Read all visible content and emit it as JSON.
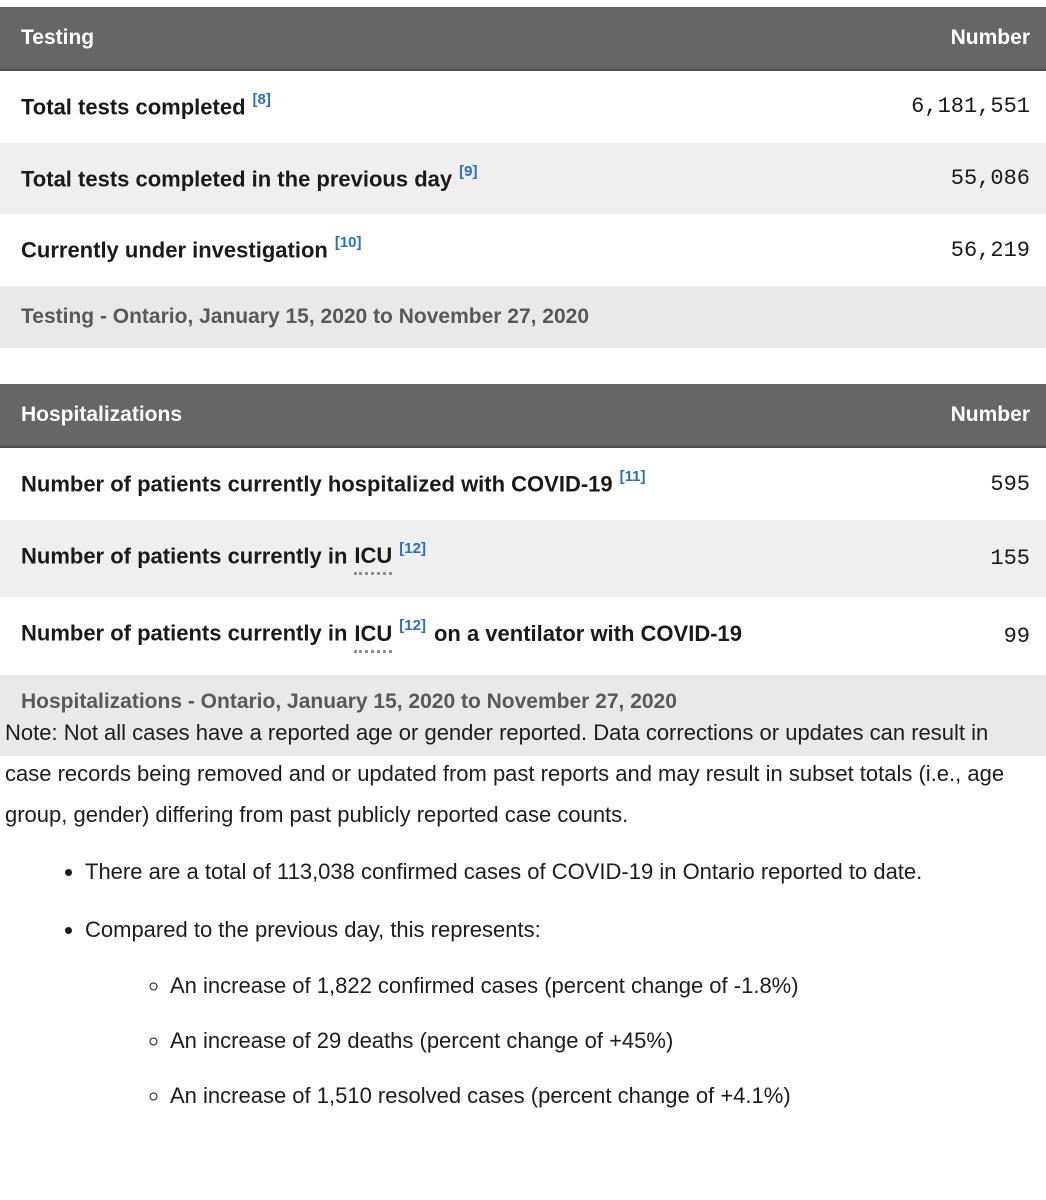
{
  "colors": {
    "table_header_bg": "#666667",
    "table_header_text": "#ffffff",
    "row_alt_bg": "#efefef",
    "caption_bg": "#e9e9e9",
    "caption_text": "#595959",
    "footnote_link": "#2b6cc4",
    "body_text": "#1c1c1c"
  },
  "testing": {
    "header": {
      "title": "Testing",
      "number_label": "Number"
    },
    "rows": [
      {
        "label": "Total tests completed",
        "footnote": "[8]",
        "value": "6,181,551"
      },
      {
        "label": "Total tests completed in the previous day",
        "footnote": "[9]",
        "value": "55,086"
      },
      {
        "label": "Currently under investigation",
        "footnote": "[10]",
        "value": "56,219"
      }
    ],
    "caption": "Testing - Ontario, January 15, 2020 to November 27, 2020"
  },
  "hospitalizations": {
    "header": {
      "title": "Hospitalizations",
      "number_label": "Number"
    },
    "rows": [
      {
        "label": "Number of patients currently hospitalized with COVID-19",
        "footnote": "[11]",
        "value": "595"
      },
      {
        "pre": "Number of patients currently in",
        "abbr": "ICU",
        "footnote": "[12]",
        "value": "155"
      },
      {
        "pre": "Number of patients currently in",
        "abbr": "ICU",
        "footnote": "[12]",
        "post": "on a ventilator with COVID-19",
        "value": "99"
      }
    ],
    "caption": "Hospitalizations - Ontario, January 15, 2020 to November 27, 2020"
  },
  "note": {
    "text": "Note: Not all cases have a reported age or gender reported. Data corrections or updates can result in case records being removed and or updated from past reports and may result in subset totals (i.e., age group, gender) differing from past publicly reported case counts."
  },
  "summary": {
    "items": [
      {
        "text": "There are a total of 113,038 confirmed cases of COVID-19 in Ontario reported to date."
      },
      {
        "text": "Compared to the previous day, this represents:",
        "children": [
          {
            "text": "An increase of 1,822 confirmed cases (percent change of -1.8%)"
          },
          {
            "text": "An increase of 29 deaths (percent change of +45%)"
          },
          {
            "text": "An increase of 1,510 resolved cases (percent change of +4.1%)"
          }
        ]
      }
    ]
  }
}
